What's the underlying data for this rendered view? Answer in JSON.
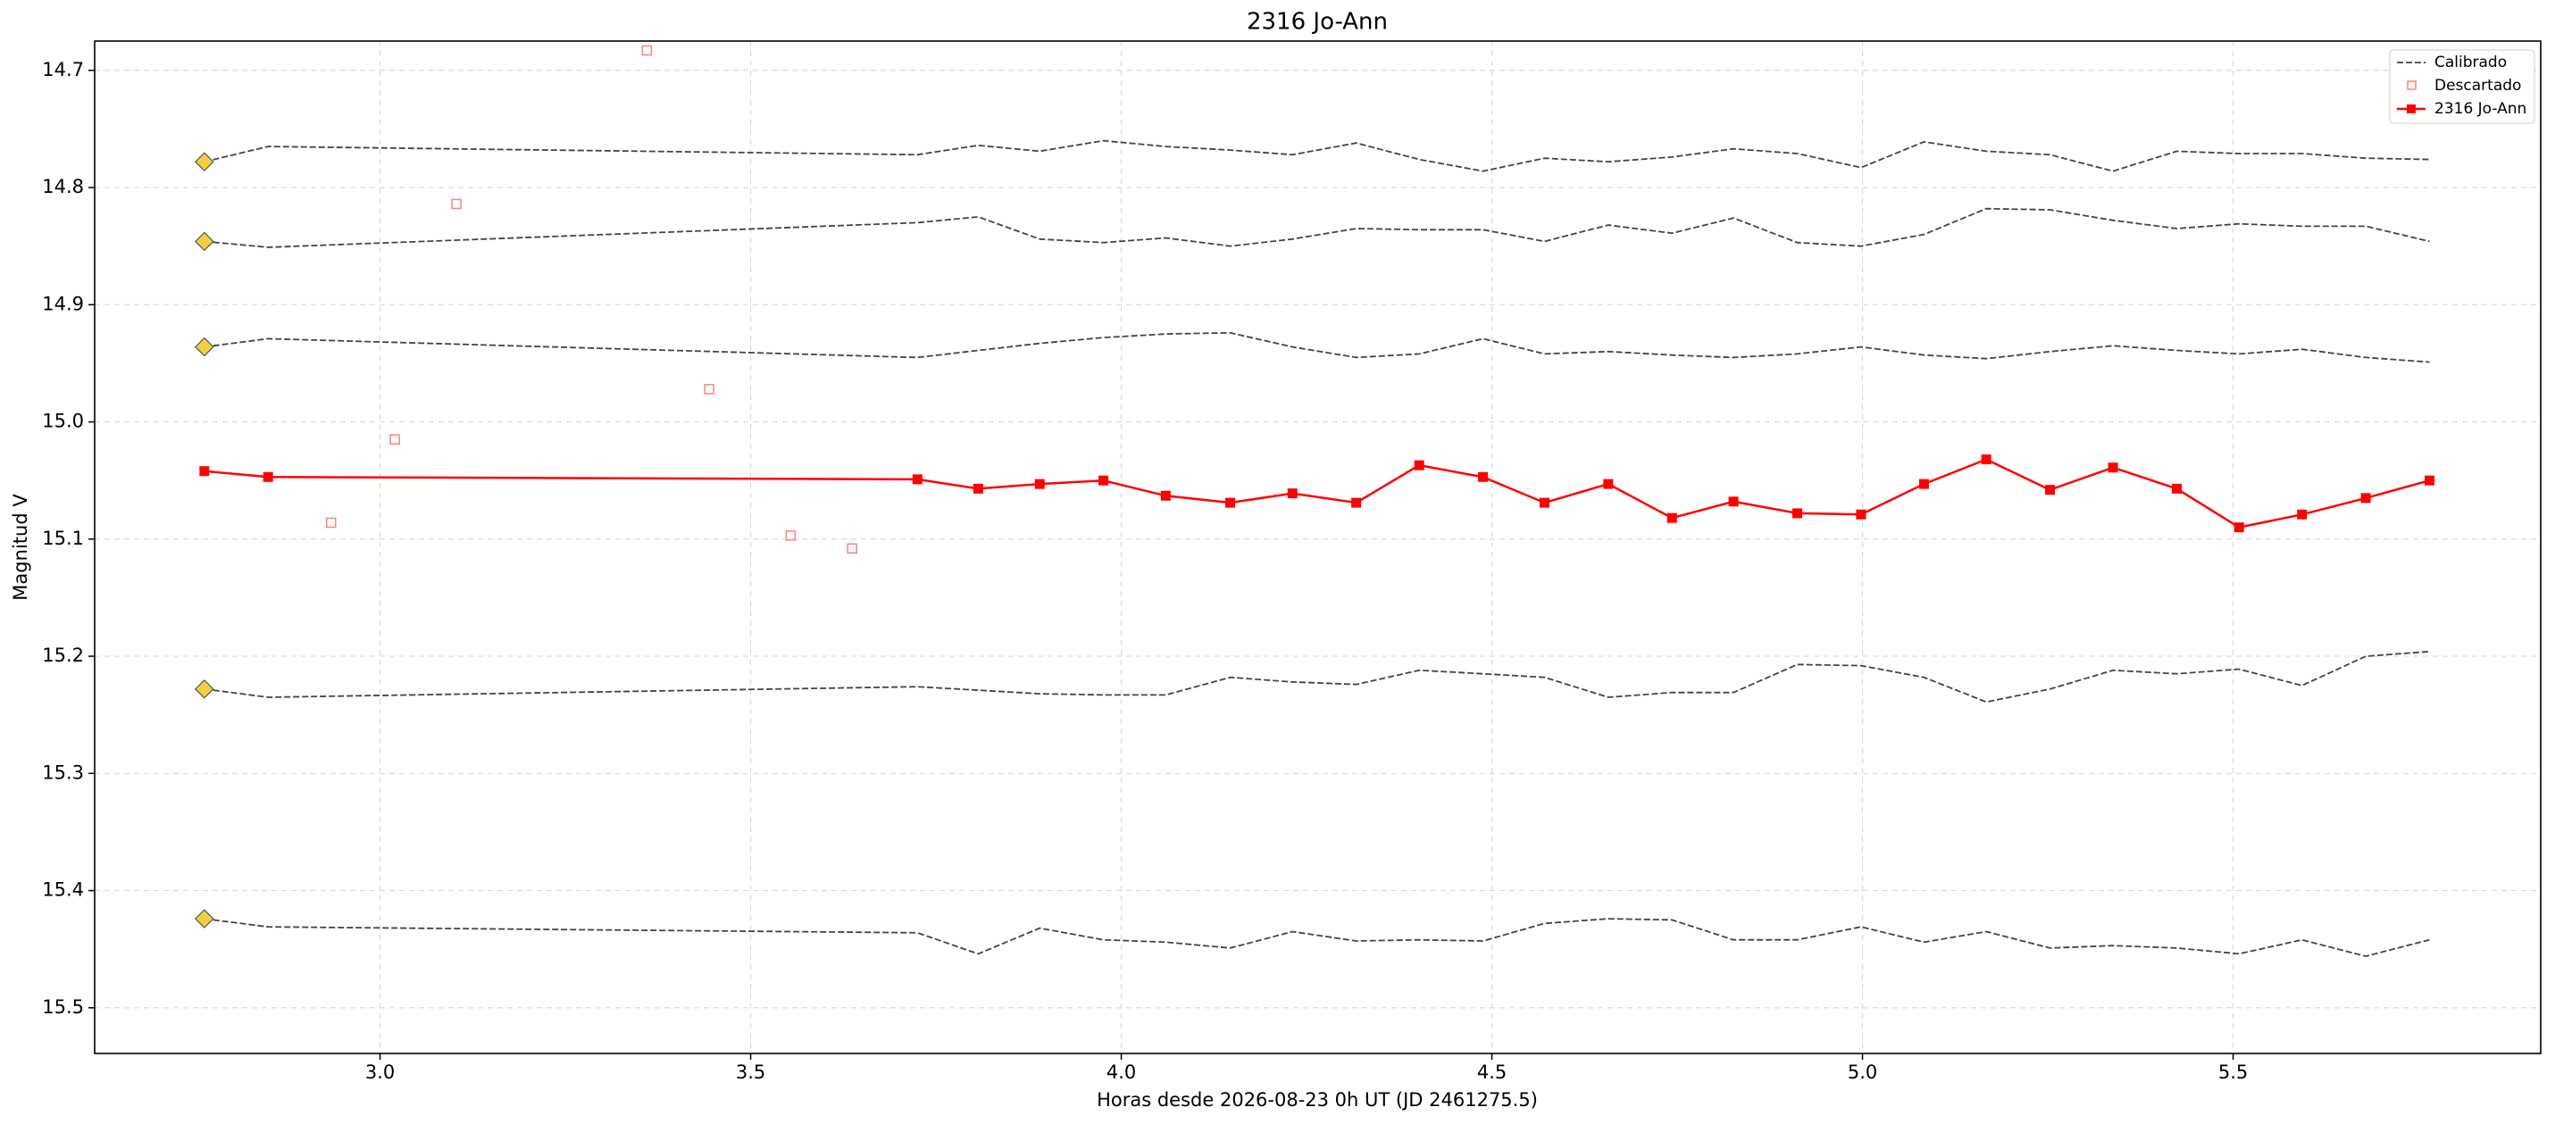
{
  "chart_data": {
    "type": "line",
    "title": "2316 Jo-Ann",
    "x_label": "Horas desde 2026-08-23 0h UT (JD 2461275.5)",
    "y_label": "Magnitud V",
    "xlim": [
      2.615,
      5.915
    ],
    "ylim": [
      14.675,
      15.539
    ],
    "y_inverted": true,
    "grid": true,
    "legend": "upper right",
    "xticks": [
      {
        "value": 3,
        "label": "3.0"
      },
      3.5,
      {
        "value": 4,
        "label": "4.0"
      },
      4.5,
      {
        "value": 5,
        "label": "5.0"
      },
      5.5
    ],
    "yticks": [
      14.7,
      14.8,
      14.9,
      {
        "value": 15,
        "label": "15.0"
      },
      15.1,
      15.2,
      15.3,
      15.4,
      15.5
    ],
    "x": [
      2.763,
      2.849,
      3.725,
      3.807,
      3.89,
      3.976,
      4.06,
      4.147,
      4.231,
      4.317,
      4.402,
      4.488,
      4.571,
      4.657,
      4.743,
      4.826,
      4.912,
      4.998,
      5.083,
      5.167,
      5.253,
      5.338,
      5.424,
      5.508,
      5.593,
      5.679,
      5.765
    ],
    "comparison": {
      "name": "Calibrado",
      "color": "#444444",
      "marker_color": "#f0d040",
      "lines": [
        [
          14.778,
          14.765,
          14.772,
          14.764,
          14.769,
          14.76,
          14.765,
          14.768,
          14.772,
          14.762,
          14.776,
          14.786,
          14.775,
          14.778,
          14.774,
          14.767,
          14.771,
          14.783,
          14.761,
          14.769,
          14.772,
          14.786,
          14.769,
          14.771,
          14.771,
          14.775,
          14.776
        ],
        [
          14.846,
          14.851,
          14.83,
          14.825,
          14.844,
          14.847,
          14.843,
          14.85,
          14.844,
          14.835,
          14.836,
          14.836,
          14.846,
          14.832,
          14.839,
          14.826,
          14.847,
          14.85,
          14.84,
          14.818,
          14.819,
          14.828,
          14.835,
          14.831,
          14.833,
          14.833,
          14.846
        ],
        [
          14.936,
          14.929,
          14.945,
          14.939,
          14.933,
          14.928,
          14.925,
          14.924,
          14.936,
          14.945,
          14.942,
          14.929,
          14.942,
          14.94,
          14.943,
          14.945,
          14.942,
          14.936,
          14.943,
          14.946,
          14.94,
          14.935,
          14.939,
          14.942,
          14.938,
          14.945,
          14.949
        ],
        [
          15.228,
          15.235,
          15.226,
          15.229,
          15.232,
          15.233,
          15.233,
          15.218,
          15.222,
          15.224,
          15.212,
          15.215,
          15.218,
          15.235,
          15.231,
          15.231,
          15.207,
          15.208,
          15.218,
          15.239,
          15.228,
          15.212,
          15.215,
          15.211,
          15.225,
          15.2,
          15.196
        ],
        [
          15.424,
          15.431,
          15.436,
          15.454,
          15.432,
          15.442,
          15.444,
          15.449,
          15.435,
          15.443,
          15.442,
          15.443,
          15.428,
          15.424,
          15.425,
          15.442,
          15.442,
          15.431,
          15.444,
          15.435,
          15.449,
          15.447,
          15.449,
          15.454,
          15.442,
          15.456,
          15.442
        ]
      ]
    },
    "discarded": {
      "name": "Descartado",
      "color": "#ff8080",
      "x": [
        3.36,
        3.103,
        3.444,
        3.02,
        2.934,
        3.554,
        3.637
      ],
      "values": [
        14.683,
        14.814,
        14.972,
        15.015,
        15.086,
        15.097,
        15.108
      ]
    },
    "target": {
      "name": "2316 Jo-Ann",
      "color": "#ff0000",
      "values": [
        15.042,
        15.047,
        15.049,
        15.057,
        15.053,
        15.05,
        15.063,
        15.069,
        15.061,
        15.069,
        15.037,
        15.047,
        15.069,
        15.053,
        15.082,
        15.068,
        15.078,
        15.079,
        15.053,
        15.032,
        15.058,
        15.039,
        15.057,
        15.09,
        15.079,
        15.065,
        15.05
      ]
    }
  }
}
